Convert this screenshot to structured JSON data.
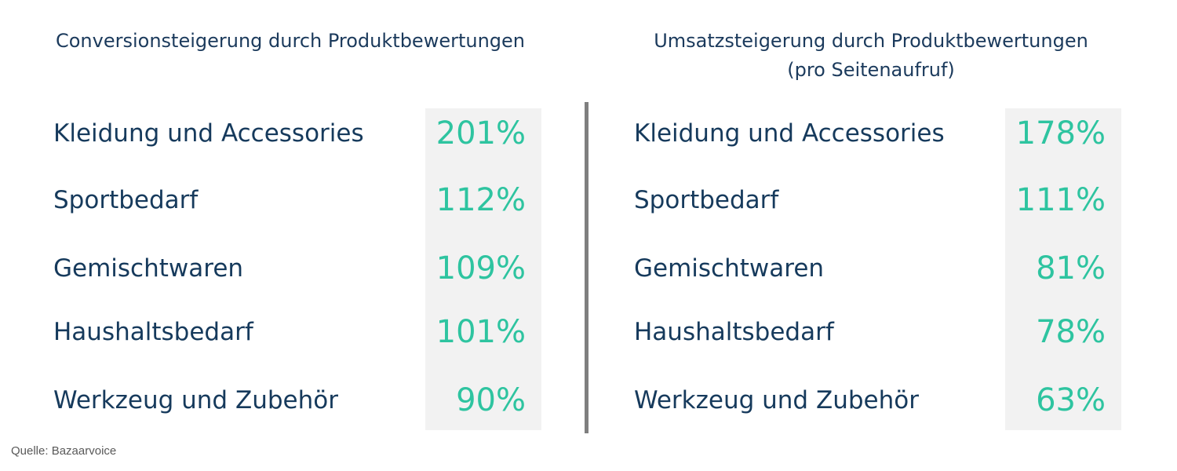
{
  "source": "Quelle: Bazaarvoice",
  "chart_data": [
    {
      "type": "table",
      "title": "Conversionsteigerung durch Produktbewertungen",
      "subtitle": "",
      "categories": [
        "Kleidung und Accessories",
        "Sportbedarf",
        "Gemischtwaren",
        "Haushaltsbedarf",
        "Werkzeug und Zubehör"
      ],
      "values": [
        201,
        112,
        109,
        101,
        90
      ],
      "value_labels": [
        "201%",
        "112%",
        "109%",
        "101%",
        "90%"
      ]
    },
    {
      "type": "table",
      "title": "Umsatzsteigerung durch Produktbewertungen",
      "subtitle": "(pro Seitenaufruf)",
      "categories": [
        "Kleidung und Accessories",
        "Sportbedarf",
        "Gemischtwaren",
        "Haushaltsbedarf",
        "Werkzeug und Zubehör"
      ],
      "values": [
        178,
        111,
        81,
        78,
        63
      ],
      "value_labels": [
        "178%",
        "111%",
        "81%",
        "78%",
        "63%"
      ]
    }
  ],
  "colors": {
    "text": "#163a5c",
    "value": "#2ec4a0",
    "value_background": "#f2f2f2",
    "divider": "#7f7f7f",
    "source": "#595959"
  }
}
